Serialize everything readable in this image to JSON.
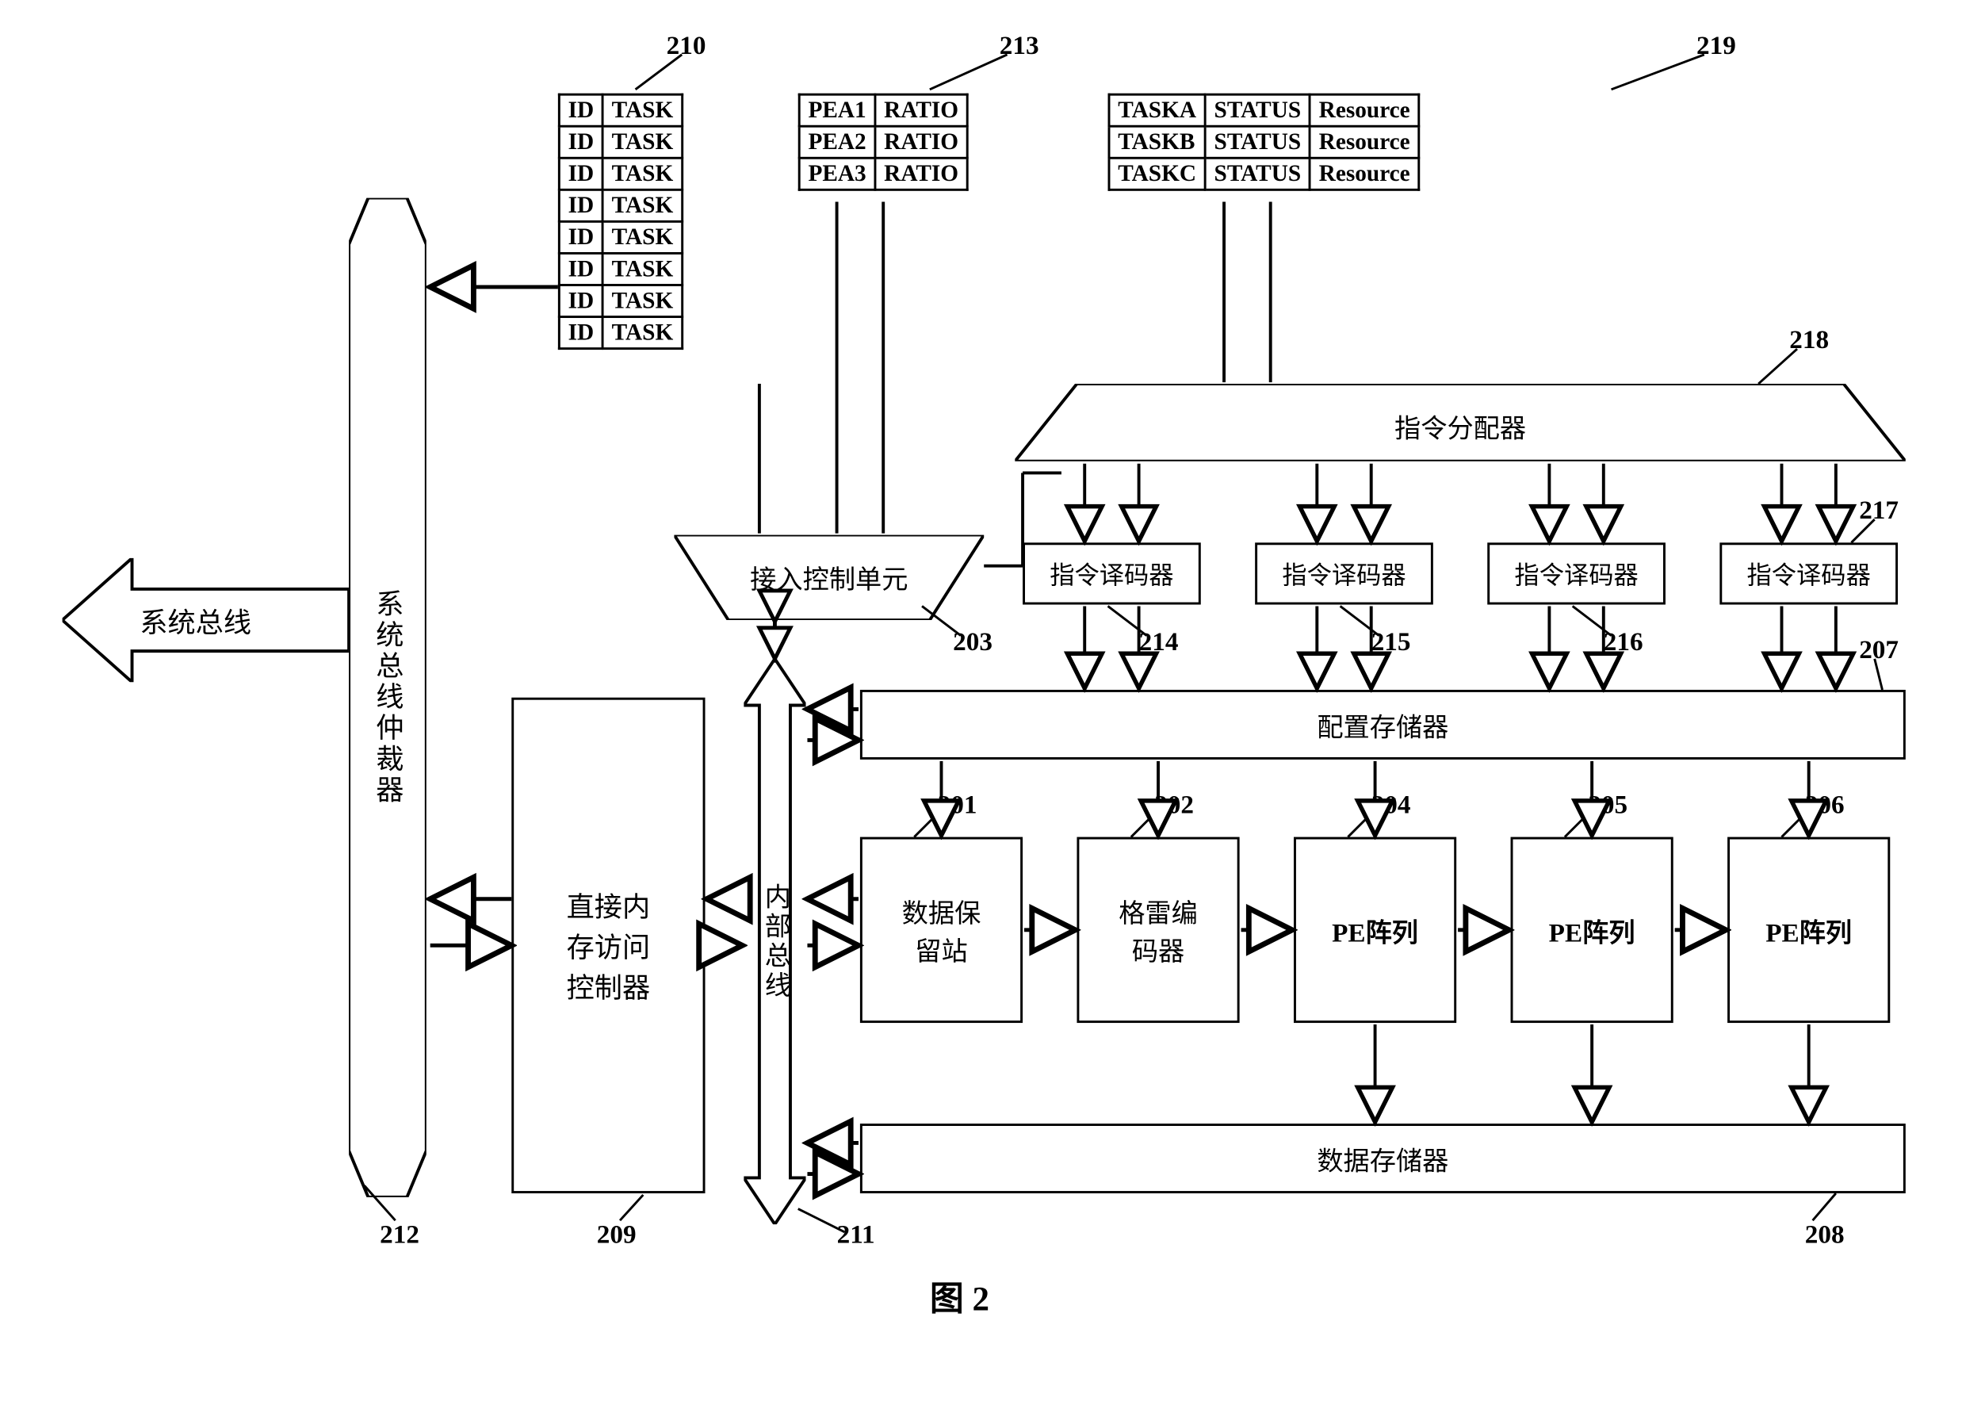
{
  "figure_caption": "图 2",
  "font": {
    "box_label_size": 34,
    "table_cell_size": 30,
    "ref_label_size": 34,
    "caption_size": 44
  },
  "colors": {
    "stroke": "#000000",
    "fill": "#ffffff",
    "bg": "#ffffff"
  },
  "table210": {
    "ref": "210",
    "rows": [
      [
        "ID",
        "TASK"
      ],
      [
        "ID",
        "TASK"
      ],
      [
        "ID",
        "TASK"
      ],
      [
        "ID",
        "TASK"
      ],
      [
        "ID",
        "TASK"
      ],
      [
        "ID",
        "TASK"
      ],
      [
        "ID",
        "TASK"
      ],
      [
        "ID",
        "TASK"
      ]
    ]
  },
  "table213": {
    "ref": "213",
    "rows": [
      [
        "PEA1",
        "RATIO"
      ],
      [
        "PEA2",
        "RATIO"
      ],
      [
        "PEA3",
        "RATIO"
      ]
    ]
  },
  "table219": {
    "ref": "219",
    "rows": [
      [
        "TASKA",
        "STATUS",
        "Resource"
      ],
      [
        "TASKB",
        "STATUS",
        "Resource"
      ],
      [
        "TASKC",
        "STATUS",
        "Resource"
      ]
    ]
  },
  "blocks": {
    "system_bus": "系统总线",
    "arbiter": "系统总线仲裁器",
    "dma": "直接内存访问控制器",
    "internal_bus": "内部总线",
    "access_ctrl": "接入控制单元",
    "dispatcher": "指令分配器",
    "decoder": "指令译码器",
    "config_mem": "配置存储器",
    "data_station": "数据保留站",
    "gray_encoder": "格雷编码器",
    "pe_array": "PE阵列",
    "data_mem": "数据存储器"
  },
  "refs": {
    "data_station": "201",
    "gray_encoder": "202",
    "access_ctrl": "203",
    "pe1": "204",
    "pe2": "205",
    "pe3": "206",
    "config_mem": "207",
    "data_mem": "208",
    "dma": "209",
    "table210": "210",
    "internal_bus": "211",
    "arbiter": "212",
    "table213": "213",
    "dec1": "214",
    "dec2": "215",
    "dec3": "216",
    "dec4": "217",
    "dispatcher": "218",
    "table219": "219"
  },
  "geom": {
    "stroke_w": 3,
    "arrow_open_w": 40,
    "arrow_open_h": 30
  }
}
